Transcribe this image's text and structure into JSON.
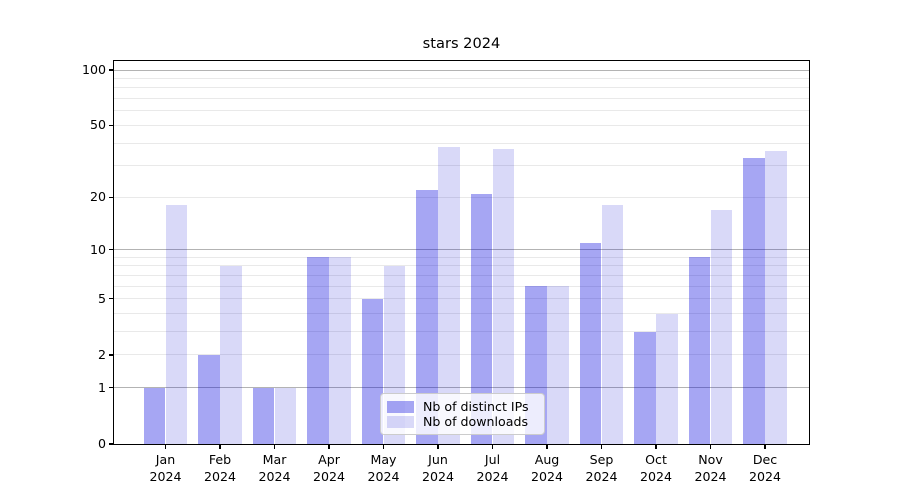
{
  "chart_data": {
    "type": "bar",
    "title": "stars 2024",
    "categories": [
      "Jan",
      "Feb",
      "Mar",
      "Apr",
      "May",
      "Jun",
      "Jul",
      "Aug",
      "Sep",
      "Oct",
      "Nov",
      "Dec"
    ],
    "x_tick_second_line": "2024",
    "series": [
      {
        "name": "Nb of distinct IPs",
        "color": "rgba(0,0,220,0.35)",
        "values": [
          1,
          2,
          1,
          9,
          5,
          22,
          21,
          6,
          11,
          3,
          9,
          33
        ]
      },
      {
        "name": "Nb of downloads",
        "color": "rgba(0,0,205,0.15)",
        "values": [
          18,
          8,
          1,
          9,
          8,
          38,
          37,
          6,
          18,
          4,
          17,
          36
        ]
      }
    ],
    "yscale": "log1p",
    "ylim": [
      0,
      112
    ],
    "y_ticks": [
      {
        "value": 100,
        "label": "100"
      },
      {
        "value": 50,
        "label": "50"
      },
      {
        "value": 20,
        "label": "20"
      },
      {
        "value": 10,
        "label": "10"
      },
      {
        "value": 5,
        "label": "5"
      },
      {
        "value": 2,
        "label": "2"
      },
      {
        "value": 1,
        "label": "1"
      },
      {
        "value": 0,
        "label": "0"
      }
    ],
    "grid": {
      "major_values": [
        1,
        10,
        100
      ],
      "minor_values": [
        2,
        3,
        4,
        5,
        6,
        7,
        8,
        9,
        20,
        30,
        40,
        50,
        60,
        70,
        80,
        90
      ],
      "major_color": "#b3b3b3",
      "minor_color": "#e9e9e9"
    },
    "legend": {
      "position": "lower-center",
      "entries": [
        "Nb of distinct IPs",
        "Nb of downloads"
      ]
    },
    "axis_color": "#000000",
    "background_color": "#ffffff"
  }
}
